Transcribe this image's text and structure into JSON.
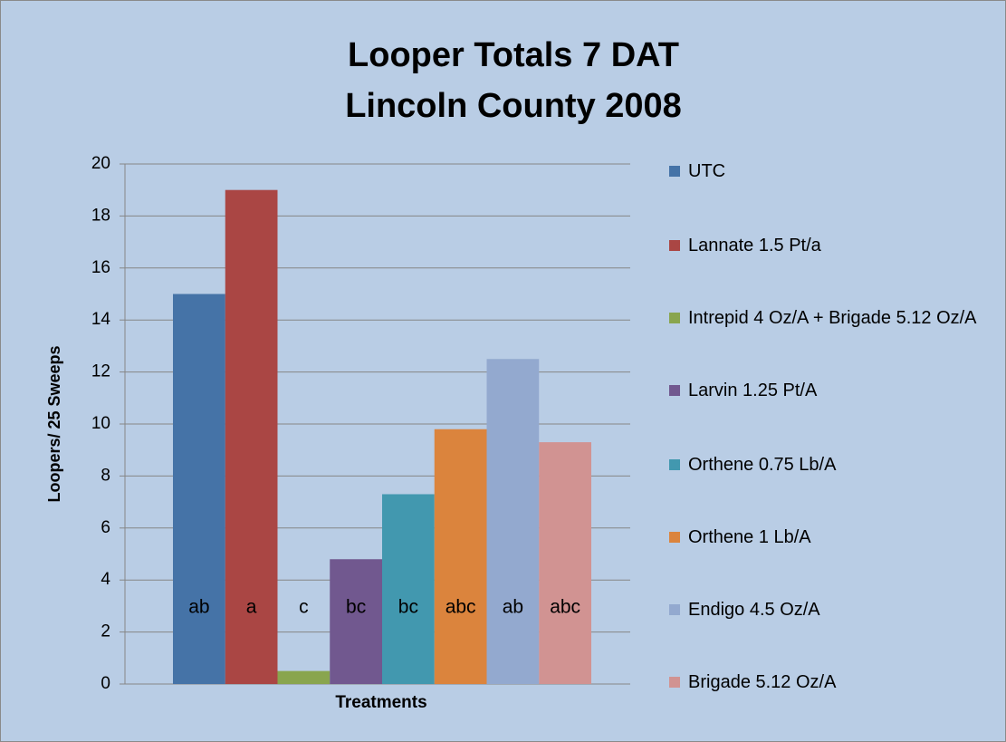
{
  "chart_data": {
    "type": "bar",
    "title": [
      "Looper Totals 7 DAT",
      "Lincoln County 2008"
    ],
    "xlabel": "Treatments",
    "ylabel": "Loopers/ 25 Sweeps",
    "series": [
      {
        "name": "UTC",
        "color": "#4573a7",
        "values": [
          15
        ]
      },
      {
        "name": "Lannate 1.5 Pt/a",
        "color": "#aa4644",
        "values": [
          19
        ]
      },
      {
        "name": "Intrepid  4 Oz/A + Brigade 5.12 Oz/A",
        "color": "#89a54e",
        "values": [
          0.5
        ]
      },
      {
        "name": "Larvin 1.25 Pt/A",
        "color": "#71588f",
        "values": [
          4.8
        ]
      },
      {
        "name": "Orthene 0.75 Lb/A",
        "color": "#4298af",
        "values": [
          7.3
        ]
      },
      {
        "name": "Orthene 1 Lb/A",
        "color": "#db843d",
        "values": [
          9.8
        ]
      },
      {
        "name": "Endigo 4.5 Oz/A",
        "color": "#93a9cf",
        "values": [
          12.5
        ]
      },
      {
        "name": "Brigade 5.12 Oz/A",
        "color": "#d19392",
        "values": [
          9.3
        ]
      }
    ],
    "annotations": [
      "ab",
      "a",
      "c",
      "bc",
      "bc",
      "abc",
      "ab",
      "abc"
    ],
    "ylim": [
      0,
      20
    ],
    "yticks": [
      0,
      2,
      4,
      6,
      8,
      10,
      12,
      14,
      16,
      18,
      20
    ],
    "grid": true,
    "legend": "right"
  }
}
